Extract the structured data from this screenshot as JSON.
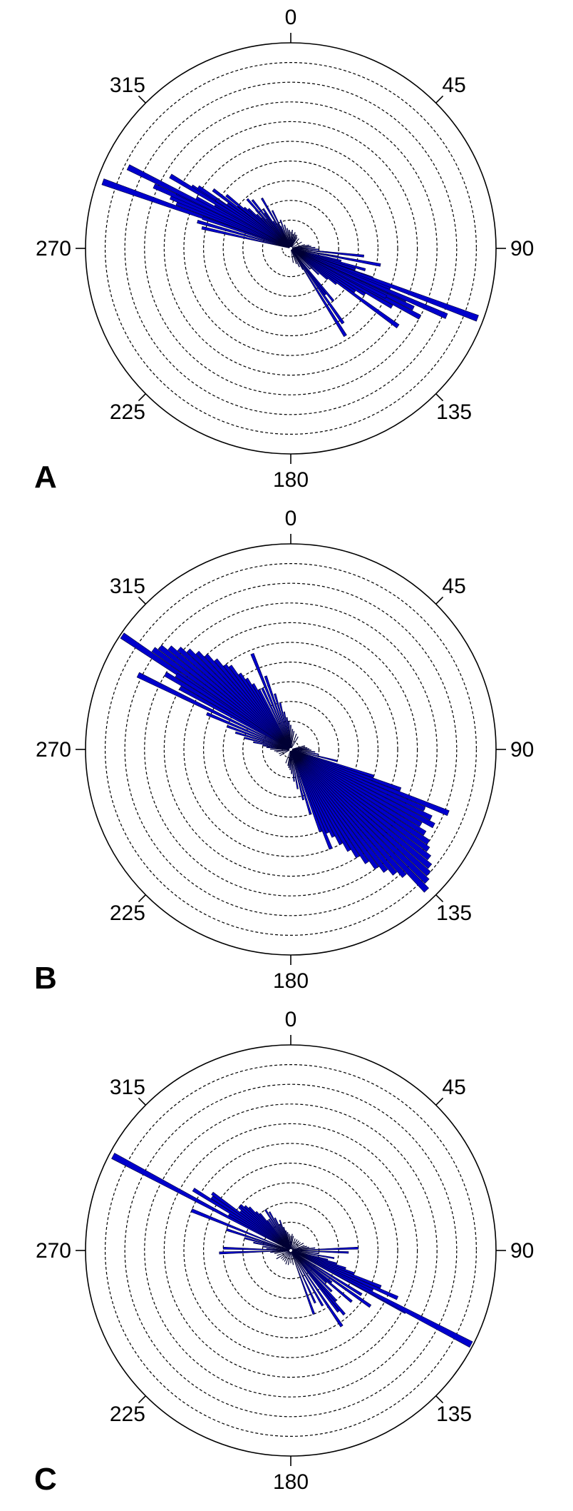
{
  "chart_data": [
    {
      "panel": "A",
      "type": "rose",
      "angle_labels": [
        "0",
        "45",
        "90",
        "135",
        "180",
        "225",
        "270",
        "315"
      ],
      "rings": 10,
      "bar_color": "#0000cc",
      "bars": [
        [
          289.5,
          0.97
        ],
        [
          291.5,
          0.58
        ],
        [
          293,
          0.62
        ],
        [
          294.5,
          0.72
        ],
        [
          296,
          0.6
        ],
        [
          298,
          0.5
        ],
        [
          300,
          0.4
        ],
        [
          302,
          0.55
        ],
        [
          303.5,
          0.52
        ],
        [
          305,
          0.35
        ],
        [
          307,
          0.45
        ],
        [
          309,
          0.3
        ],
        [
          311,
          0.27
        ],
        [
          313,
          0.25
        ],
        [
          315,
          0.2
        ],
        [
          318,
          0.22
        ],
        [
          321,
          0.15
        ],
        [
          324,
          0.18
        ],
        [
          327,
          0.12
        ],
        [
          330,
          0.2
        ],
        [
          333,
          0.1
        ],
        [
          336,
          0.08
        ],
        [
          340,
          0.06
        ],
        [
          345,
          0.05
        ],
        [
          350,
          0.04
        ],
        [
          355,
          0.05
        ],
        [
          5,
          0.04
        ],
        [
          10,
          0.03
        ],
        [
          20,
          0.03
        ],
        [
          40,
          0.02
        ],
        [
          60,
          0.02
        ],
        [
          75,
          0.03
        ],
        [
          80,
          0.05
        ],
        [
          84,
          0.06
        ],
        [
          88,
          0.08
        ],
        [
          92,
          0.1
        ],
        [
          96,
          0.15
        ],
        [
          100,
          0.2
        ],
        [
          104,
          0.22
        ],
        [
          108,
          0.3
        ],
        [
          110,
          0.4
        ],
        [
          112,
          0.5
        ],
        [
          114,
          0.6
        ],
        [
          116,
          0.65
        ],
        [
          118,
          0.7
        ],
        [
          120,
          0.55
        ],
        [
          122,
          0.4
        ],
        [
          124,
          0.35
        ],
        [
          126,
          0.3
        ],
        [
          128,
          0.25
        ],
        [
          130,
          0.2
        ],
        [
          133,
          0.15
        ],
        [
          137,
          0.1
        ],
        [
          141,
          0.3
        ],
        [
          145,
          0.42
        ],
        [
          150,
          0.08
        ],
        [
          155,
          0.06
        ],
        [
          160,
          0.04
        ],
        [
          170,
          0.03
        ],
        [
          110.5,
          0.97
        ],
        [
          113.5,
          0.82
        ],
        [
          117,
          0.5
        ],
        [
          126,
          0.63
        ],
        [
          148,
          0.48
        ],
        [
          106,
          0.35
        ],
        [
          100.5,
          0.42
        ],
        [
          96,
          0.33
        ],
        [
          143,
          0.25
        ],
        [
          286,
          0.45
        ],
        [
          283,
          0.42
        ],
        [
          296.5,
          0.88
        ],
        [
          289,
          0.43
        ],
        [
          301,
          0.67
        ],
        [
          303,
          0.41
        ],
        [
          309.5,
          0.38
        ],
        [
          313,
          0.23
        ],
        [
          315.5,
          0.17
        ],
        [
          318.5,
          0.29
        ],
        [
          321.5,
          0.27
        ],
        [
          325,
          0.2
        ],
        [
          330,
          0.25
        ],
        [
          334,
          0.17
        ],
        [
          340,
          0.11
        ],
        [
          345,
          0.08
        ],
        [
          350,
          0.06
        ],
        [
          355,
          0.05
        ],
        [
          0,
          0.04
        ],
        [
          5,
          0.05
        ],
        [
          10,
          0.03
        ],
        [
          15,
          0.04
        ],
        [
          20,
          0.02
        ],
        [
          25,
          0.03
        ],
        [
          30,
          0.02
        ]
      ]
    },
    {
      "panel": "B",
      "type": "rose",
      "angle_labels": [
        "0",
        "45",
        "90",
        "135",
        "180",
        "225",
        "270",
        "315"
      ],
      "rings": 10,
      "bar_color": "#0000cc",
      "bars": [
        [
          304,
          0.99
        ],
        [
          306,
          0.82
        ],
        [
          308,
          0.8
        ],
        [
          310,
          0.76
        ],
        [
          312,
          0.72
        ],
        [
          314,
          0.68
        ],
        [
          316,
          0.64
        ],
        [
          318,
          0.6
        ],
        [
          320,
          0.55
        ],
        [
          322,
          0.5
        ],
        [
          324,
          0.48
        ],
        [
          326,
          0.42
        ],
        [
          328,
          0.38
        ],
        [
          330,
          0.34
        ],
        [
          332,
          0.3
        ],
        [
          335,
          0.3
        ],
        [
          338,
          0.48
        ],
        [
          341,
          0.35
        ],
        [
          344,
          0.25
        ],
        [
          347,
          0.2
        ],
        [
          350,
          0.15
        ],
        [
          353,
          0.12
        ],
        [
          356,
          0.1
        ],
        [
          0,
          0.08
        ],
        [
          5,
          0.06
        ],
        [
          10,
          0.05
        ],
        [
          20,
          0.04
        ],
        [
          30,
          0.03
        ],
        [
          296,
          0.82
        ],
        [
          299,
          0.6
        ],
        [
          301,
          0.7
        ],
        [
          303,
          0.65
        ],
        [
          293,
          0.42
        ],
        [
          290,
          0.3
        ],
        [
          287,
          0.25
        ],
        [
          284,
          0.2
        ],
        [
          281,
          0.15
        ],
        [
          278,
          0.1
        ],
        [
          275,
          0.08
        ],
        [
          271,
          0.06
        ],
        [
          100,
          0.1
        ],
        [
          104,
          0.2
        ],
        [
          108,
          0.4
        ],
        [
          110,
          0.55
        ],
        [
          112,
          0.82
        ],
        [
          114,
          0.7
        ],
        [
          116,
          0.75
        ],
        [
          118,
          0.78
        ],
        [
          120,
          0.72
        ],
        [
          122,
          0.76
        ],
        [
          124,
          0.8
        ],
        [
          126,
          0.82
        ],
        [
          128,
          0.85
        ],
        [
          130,
          0.88
        ],
        [
          132,
          0.9
        ],
        [
          134,
          0.92
        ],
        [
          136,
          0.95
        ],
        [
          138,
          0.82
        ],
        [
          140,
          0.78
        ],
        [
          142,
          0.74
        ],
        [
          144,
          0.7
        ],
        [
          146,
          0.65
        ],
        [
          148,
          0.6
        ],
        [
          150,
          0.55
        ],
        [
          152,
          0.5
        ],
        [
          154,
          0.45
        ],
        [
          156,
          0.42
        ],
        [
          158,
          0.5
        ],
        [
          160,
          0.4
        ],
        [
          163,
          0.3
        ],
        [
          166,
          0.22
        ],
        [
          170,
          0.16
        ],
        [
          174,
          0.12
        ],
        [
          178,
          0.08
        ],
        [
          182,
          0.06
        ],
        [
          186,
          0.05
        ],
        [
          190,
          0.04
        ],
        [
          200,
          0.03
        ],
        [
          96,
          0.08
        ],
        [
          92,
          0.06
        ],
        [
          88,
          0.05
        ],
        [
          84,
          0.04
        ],
        [
          80,
          0.03
        ],
        [
          75,
          0.03
        ],
        [
          265,
          0.04
        ],
        [
          260,
          0.03
        ],
        [
          250,
          0.02
        ],
        [
          240,
          0.02
        ]
      ]
    },
    {
      "panel": "C",
      "type": "rose",
      "angle_labels": [
        "0",
        "45",
        "90",
        "135",
        "180",
        "225",
        "270",
        "315"
      ],
      "rings": 10,
      "bar_color": "#0000cc",
      "bars": [
        [
          298,
          0.98
        ],
        [
          300,
          0.32
        ],
        [
          302,
          0.54
        ],
        [
          304,
          0.44
        ],
        [
          306,
          0.45
        ],
        [
          308,
          0.28
        ],
        [
          310,
          0.3
        ],
        [
          312,
          0.3
        ],
        [
          314,
          0.28
        ],
        [
          316,
          0.26
        ],
        [
          318,
          0.22
        ],
        [
          320,
          0.2
        ],
        [
          322,
          0.15
        ],
        [
          325,
          0.15
        ],
        [
          328,
          0.2
        ],
        [
          331,
          0.18
        ],
        [
          334,
          0.14
        ],
        [
          337,
          0.1
        ],
        [
          340,
          0.12
        ],
        [
          343,
          0.08
        ],
        [
          346,
          0.06
        ],
        [
          350,
          0.05
        ],
        [
          355,
          0.04
        ],
        [
          0,
          0.03
        ],
        [
          5,
          0.04
        ],
        [
          10,
          0.03
        ],
        [
          20,
          0.02
        ],
        [
          30,
          0.02
        ],
        [
          292,
          0.5
        ],
        [
          288,
          0.3
        ],
        [
          285,
          0.2
        ],
        [
          282,
          0.15
        ],
        [
          278,
          0.1
        ],
        [
          274,
          0.08
        ],
        [
          272,
          0.3
        ],
        [
          268,
          0.32
        ],
        [
          265,
          0.06
        ],
        [
          260,
          0.04
        ],
        [
          250,
          0.03
        ],
        [
          240,
          0.04
        ],
        [
          230,
          0.02
        ],
        [
          220,
          0.02
        ],
        [
          210,
          0.02
        ],
        [
          200,
          0.03
        ],
        [
          190,
          0.03
        ],
        [
          180,
          0.02
        ],
        [
          170,
          0.03
        ],
        [
          160,
          0.3
        ],
        [
          155,
          0.25
        ],
        [
          150,
          0.28
        ],
        [
          146,
          0.42
        ],
        [
          142,
          0.35
        ],
        [
          140,
          0.38
        ],
        [
          138,
          0.3
        ],
        [
          135,
          0.25
        ],
        [
          132,
          0.2
        ],
        [
          130,
          0.25
        ],
        [
          128,
          0.22
        ],
        [
          125,
          0.3
        ],
        [
          122,
          0.38
        ],
        [
          118,
          0.62
        ],
        [
          116,
          0.42
        ],
        [
          114,
          0.55
        ],
        [
          112,
          0.45
        ],
        [
          110,
          0.3
        ],
        [
          108,
          0.25
        ],
        [
          106,
          0.2
        ],
        [
          104,
          0.15
        ],
        [
          100,
          0.18
        ],
        [
          96,
          0.1
        ],
        [
          92,
          0.25
        ],
        [
          88,
          0.3
        ],
        [
          84,
          0.08
        ],
        [
          80,
          0.05
        ],
        [
          75,
          0.04
        ],
        [
          70,
          0.03
        ],
        [
          60,
          0.03
        ],
        [
          50,
          0.02
        ],
        [
          40,
          0.02
        ],
        [
          117.5,
          0.99
        ],
        [
          125,
          0.45
        ],
        [
          130,
          0.36
        ]
      ]
    }
  ]
}
